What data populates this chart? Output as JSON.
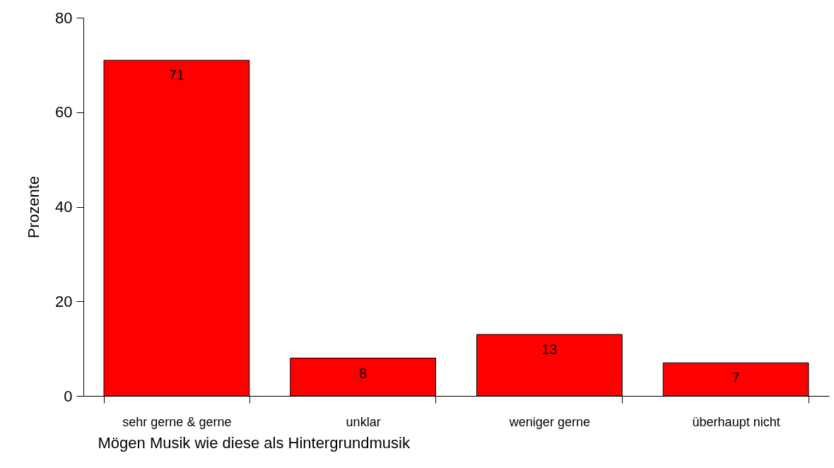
{
  "chart_data": {
    "type": "bar",
    "xlabel": "Mögen Musik wie diese als Hintergrundmusik",
    "ylabel": "Prozente",
    "categories": [
      "sehr gerne & gerne",
      "unklar",
      "weniger gerne",
      "überhaupt nicht"
    ],
    "values": [
      71,
      8,
      13,
      7
    ],
    "color": "#ff0000",
    "ylim": [
      0,
      80
    ],
    "yticks": [
      0,
      20,
      40,
      60,
      80
    ],
    "grid": false,
    "data_labels": true
  }
}
